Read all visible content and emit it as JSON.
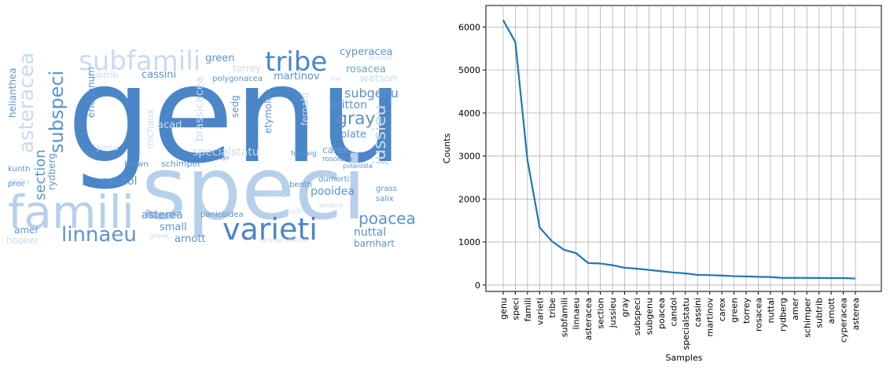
{
  "wordcloud": {
    "words": [
      {
        "text": "genu",
        "size": 170,
        "color": "#4a86c8",
        "x": 85,
        "y": 205
      },
      {
        "text": "speci",
        "size": 110,
        "color": "#b7d0ea",
        "x": 180,
        "y": 278
      },
      {
        "text": "famili",
        "size": 58,
        "color": "#b7d0ea",
        "x": 10,
        "y": 290
      },
      {
        "text": "varieti",
        "size": 38,
        "color": "#4a86c8",
        "x": 283,
        "y": 305
      },
      {
        "text": "subfamili",
        "size": 34,
        "color": "#c9dbef",
        "x": 100,
        "y": 89
      },
      {
        "text": "tribe",
        "size": 34,
        "color": "#4a86c8",
        "x": 337,
        "y": 90
      },
      {
        "text": "linnaeu",
        "size": 26,
        "color": "#5b93ce",
        "x": 78,
        "y": 307
      },
      {
        "text": "asteracea",
        "size": 26,
        "color": "#c9dbef",
        "x": 42,
        "y": 195,
        "rotate": true
      },
      {
        "text": "subspeci",
        "size": 24,
        "color": "#5b93ce",
        "x": 80,
        "y": 195,
        "rotate": true
      },
      {
        "text": "section",
        "size": 18,
        "color": "#5b93ce",
        "x": 57,
        "y": 255,
        "rotate": true
      },
      {
        "text": "cyperacea",
        "size": 13,
        "color": "#5b93ce",
        "x": 432,
        "y": 70
      },
      {
        "text": "rosacea",
        "size": 13,
        "color": "#6fa0d4",
        "x": 440,
        "y": 92
      },
      {
        "text": "watson",
        "size": 13,
        "color": "#c9dbef",
        "x": 458,
        "y": 104
      },
      {
        "text": "subgenu",
        "size": 16,
        "color": "#5b93ce",
        "x": 438,
        "y": 124
      },
      {
        "text": "gray",
        "size": 22,
        "color": "#5b93ce",
        "x": 428,
        "y": 158
      },
      {
        "text": "jussieu",
        "size": 22,
        "color": "#c9dbef",
        "x": 490,
        "y": 210,
        "rotate": true
      },
      {
        "text": "britton",
        "size": 14,
        "color": "#5b93ce",
        "x": 420,
        "y": 138
      },
      {
        "text": "plate",
        "size": 13,
        "color": "#5b93ce",
        "x": 433,
        "y": 175
      },
      {
        "text": "carex",
        "size": 12,
        "color": "#6fa0d4",
        "x": 410,
        "y": 195
      },
      {
        "text": "martinov",
        "size": 13,
        "color": "#5b93ce",
        "x": 348,
        "y": 101
      },
      {
        "text": "torrey",
        "size": 12,
        "color": "#c9dbef",
        "x": 296,
        "y": 91
      },
      {
        "text": "green",
        "size": 13,
        "color": "#5b93ce",
        "x": 261,
        "y": 78
      },
      {
        "text": "cassini",
        "size": 13,
        "color": "#5b93ce",
        "x": 180,
        "y": 99
      },
      {
        "text": "subtrib",
        "size": 11,
        "color": "#c9dbef",
        "x": 112,
        "y": 99
      },
      {
        "text": "polygonacea",
        "size": 10,
        "color": "#5b93ce",
        "x": 270,
        "y": 103
      },
      {
        "text": "fernald",
        "size": 12,
        "color": "#c9dbef",
        "x": 392,
        "y": 160,
        "rotate": true
      },
      {
        "text": "brassicacea",
        "size": 14,
        "color": "#c9dbef",
        "x": 258,
        "y": 180,
        "rotate": true
      },
      {
        "text": "etymolog",
        "size": 12,
        "color": "#5b93ce",
        "x": 345,
        "y": 170,
        "rotate": true
      },
      {
        "text": "sedg",
        "size": 12,
        "color": "#5b93ce",
        "x": 303,
        "y": 150,
        "rotate": true
      },
      {
        "text": "michaux",
        "size": 12,
        "color": "#c9dbef",
        "x": 195,
        "y": 190,
        "rotate": true
      },
      {
        "text": "specialstatu",
        "size": 14,
        "color": "#c9dbef",
        "x": 245,
        "y": 198
      },
      {
        "text": "schimper",
        "size": 11,
        "color": "#5b93ce",
        "x": 205,
        "y": 212
      },
      {
        "text": "hedwig",
        "size": 9,
        "color": "#5b93ce",
        "x": 370,
        "y": 198
      },
      {
        "text": "rosoidea",
        "size": 9,
        "color": "#5b93ce",
        "x": 410,
        "y": 205
      },
      {
        "text": "candol",
        "size": 14,
        "color": "#5b93ce",
        "x": 128,
        "y": 235
      },
      {
        "text": "brown",
        "size": 10,
        "color": "#5b93ce",
        "x": 158,
        "y": 212
      },
      {
        "text": "pooidea",
        "size": 14,
        "color": "#5b93ce",
        "x": 395,
        "y": 248
      },
      {
        "text": "dumorti",
        "size": 10,
        "color": "#5b93ce",
        "x": 405,
        "y": 231
      },
      {
        "text": "benth",
        "size": 10,
        "color": "#5b93ce",
        "x": 368,
        "y": 238
      },
      {
        "text": "lindley",
        "size": 10,
        "color": "#c9dbef",
        "x": 332,
        "y": 250
      },
      {
        "text": "asterea",
        "size": 14,
        "color": "#5b93ce",
        "x": 180,
        "y": 278
      },
      {
        "text": "panicoidea",
        "size": 10,
        "color": "#5b93ce",
        "x": 255,
        "y": 276
      },
      {
        "text": "poacea",
        "size": 20,
        "color": "#5b93ce",
        "x": 456,
        "y": 285
      },
      {
        "text": "nuttal",
        "size": 14,
        "color": "#5b93ce",
        "x": 450,
        "y": 300
      },
      {
        "text": "grass",
        "size": 10,
        "color": "#5b93ce",
        "x": 478,
        "y": 243
      },
      {
        "text": "salix",
        "size": 10,
        "color": "#5b93ce",
        "x": 478,
        "y": 256
      },
      {
        "text": "barnhart",
        "size": 12,
        "color": "#5b93ce",
        "x": 450,
        "y": 314
      },
      {
        "text": "small",
        "size": 13,
        "color": "#5b93ce",
        "x": 203,
        "y": 293
      },
      {
        "text": "arnott",
        "size": 13,
        "color": "#5b93ce",
        "x": 222,
        "y": 308
      },
      {
        "text": "purSh",
        "size": 9,
        "color": "#c9dbef",
        "x": 362,
        "y": 272
      },
      {
        "text": "amer",
        "size": 12,
        "color": "#5b93ce",
        "x": 18,
        "y": 297
      },
      {
        "text": "hooker",
        "size": 12,
        "color": "#c9dbef",
        "x": 8,
        "y": 310
      },
      {
        "text": "kunth",
        "size": 10,
        "color": "#5b93ce",
        "x": 10,
        "y": 218
      },
      {
        "text": "draba",
        "size": 9,
        "color": "#c9dbef",
        "x": 12,
        "y": 234
      },
      {
        "text": "proc",
        "size": 10,
        "color": "#5b93ce",
        "x": 10,
        "y": 237
      },
      {
        "text": "helianthea",
        "size": 12,
        "color": "#5b93ce",
        "x": 20,
        "y": 150,
        "rotate": true
      },
      {
        "text": "eriogonum",
        "size": 12,
        "color": "#5b93ce",
        "x": 120,
        "y": 150,
        "rotate": true
      },
      {
        "text": "rydberg",
        "size": 12,
        "color": "#5b93ce",
        "x": 70,
        "y": 242,
        "rotate": true
      },
      {
        "text": "acad",
        "size": 13,
        "color": "#c9dbef",
        "x": 200,
        "y": 163
      },
      {
        "text": "juncu",
        "size": 10,
        "color": "#c9dbef",
        "x": 123,
        "y": 191
      },
      {
        "text": "buli",
        "size": 8,
        "color": "#5b93ce",
        "x": 110,
        "y": 197
      },
      {
        "text": "greek",
        "size": 9,
        "color": "#c9dbef",
        "x": 190,
        "y": 303
      },
      {
        "text": "lamarck",
        "size": 8,
        "color": "#c9dbef",
        "x": 405,
        "y": 264
      },
      {
        "text": "link",
        "size": 8,
        "color": "#c9dbef",
        "x": 420,
        "y": 103
      },
      {
        "text": "potentilla",
        "size": 8,
        "color": "#5b93ce",
        "x": 436,
        "y": 214
      },
      {
        "text": "caryophyllacea",
        "size": 8,
        "color": "#c9dbef",
        "x": 330,
        "y": 308
      },
      {
        "text": "solidago",
        "size": 7,
        "color": "#5b93ce",
        "x": 262,
        "y": 203
      },
      {
        "text": "burnett",
        "size": 8,
        "color": "#c9dbef",
        "x": 470,
        "y": 76
      }
    ]
  },
  "chart_data": {
    "type": "line",
    "xlabel": "Samples",
    "ylabel": "Counts",
    "ylim": [
      -150,
      6500
    ],
    "yticks": [
      0,
      1000,
      2000,
      3000,
      4000,
      5000,
      6000
    ],
    "grid": true,
    "line_color": "#1f77b4",
    "categories": [
      "genu",
      "speci",
      "famili",
      "varieti",
      "tribe",
      "subfamili",
      "linnaeu",
      "asteracea",
      "section",
      "jussieu",
      "gray",
      "subspeci",
      "subgenu",
      "poacea",
      "candol",
      "specialstatu",
      "cassini",
      "martinov",
      "carex",
      "green",
      "torrey",
      "rosacea",
      "nuttal",
      "rydberg",
      "amer",
      "schimper",
      "subtrib",
      "arnott",
      "cyperacea",
      "asterea"
    ],
    "values": [
      6160,
      5650,
      2900,
      1340,
      1020,
      820,
      740,
      510,
      500,
      460,
      400,
      380,
      350,
      320,
      290,
      270,
      235,
      230,
      220,
      205,
      200,
      190,
      185,
      165,
      165,
      165,
      163,
      160,
      160,
      150
    ]
  }
}
